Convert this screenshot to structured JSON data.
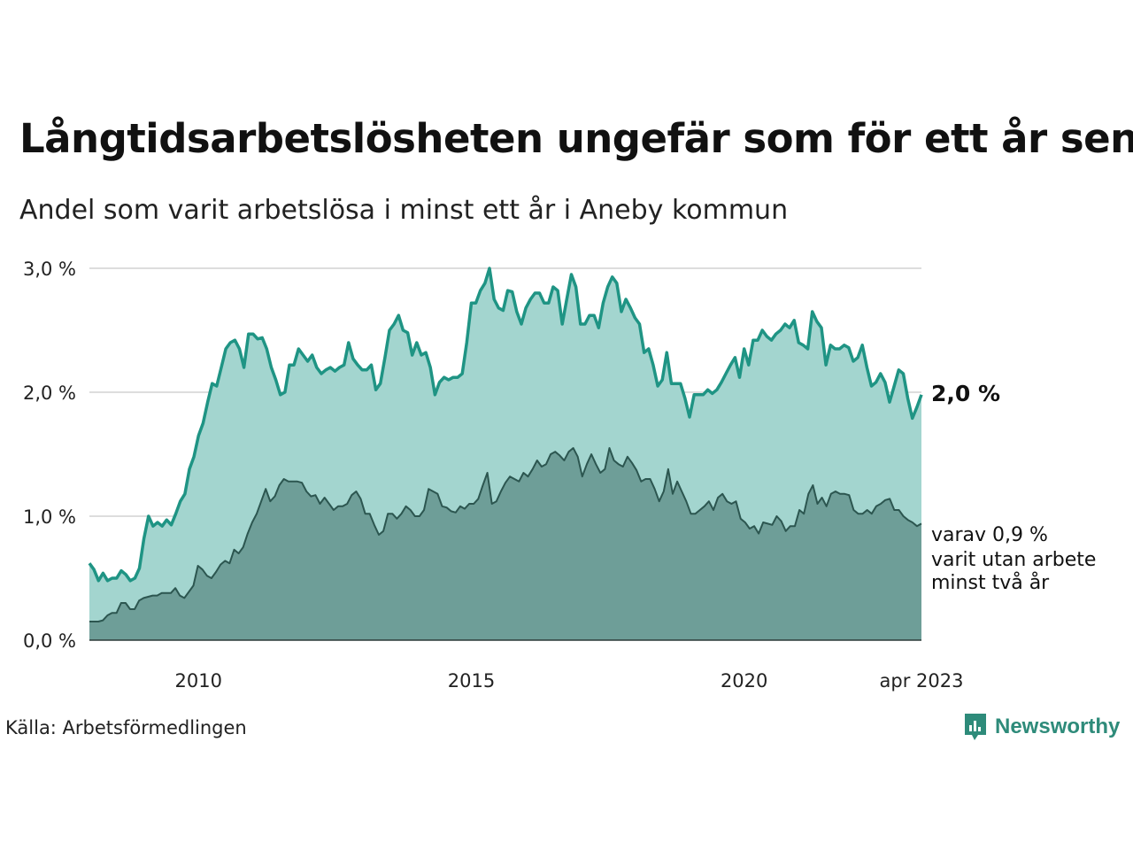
{
  "title": "Långtidsarbetslösheten ungefär som för ett år sen",
  "subtitle": "Andel som varit arbetslösa i minst ett år i Aneby kommun",
  "source": "Källa: Arbetsförmedlingen",
  "brand": "Newsworthy",
  "end_label": "2,0 %",
  "note_lines": [
    "varav 0,9 %",
    "varit utan arbete",
    "minst två år"
  ],
  "colors": {
    "long_area": "#a3d5cf",
    "long_line": "#1f9484",
    "verylong_area": "#6e9e98",
    "verylong_line": "#2c5650",
    "grid": "#dddddd",
    "brand": "#2e8b7a"
  },
  "chart_data": {
    "type": "area",
    "x_start": "2008-01",
    "x_end": "2023-04",
    "frequency": "monthly",
    "ylim": [
      0,
      3.0
    ],
    "y_ticks": [
      0,
      1.0,
      2.0,
      3.0
    ],
    "y_tick_labels": [
      "0,0 %",
      "1,0 %",
      "2,0 %",
      "3,0 %"
    ],
    "x_ticks": [
      "2010",
      "2015",
      "2020",
      "apr 2023"
    ],
    "x_tick_dates": [
      "2010-01",
      "2015-01",
      "2020-01",
      "2023-04"
    ],
    "grid": true,
    "series": [
      {
        "key": "long",
        "values": [
          0.62,
          0.57,
          0.48,
          0.54,
          0.48,
          0.5,
          0.5,
          0.56,
          0.53,
          0.48,
          0.5,
          0.58,
          0.82,
          1.0,
          0.92,
          0.95,
          0.92,
          0.97,
          0.93,
          1.02,
          1.12,
          1.18,
          1.38,
          1.48,
          1.65,
          1.75,
          1.92,
          2.07,
          2.05,
          2.2,
          2.35,
          2.4,
          2.42,
          2.35,
          2.2,
          2.47,
          2.47,
          2.43,
          2.44,
          2.35,
          2.2,
          2.1,
          1.98,
          2.0,
          2.22,
          2.22,
          2.35,
          2.3,
          2.25,
          2.3,
          2.2,
          2.15,
          2.18,
          2.2,
          2.17,
          2.2,
          2.22,
          2.4,
          2.27,
          2.22,
          2.18,
          2.18,
          2.22,
          2.02,
          2.07,
          2.28,
          2.5,
          2.55,
          2.62,
          2.5,
          2.48,
          2.3,
          2.4,
          2.3,
          2.32,
          2.2,
          1.98,
          2.08,
          2.12,
          2.1,
          2.12,
          2.12,
          2.15,
          2.4,
          2.72,
          2.72,
          2.82,
          2.88,
          3.0,
          2.75,
          2.68,
          2.66,
          2.82,
          2.81,
          2.65,
          2.55,
          2.68,
          2.75,
          2.8,
          2.8,
          2.72,
          2.72,
          2.85,
          2.82,
          2.55,
          2.75,
          2.95,
          2.85,
          2.55,
          2.55,
          2.62,
          2.62,
          2.52,
          2.72,
          2.85,
          2.93,
          2.88,
          2.65,
          2.75,
          2.68,
          2.6,
          2.55,
          2.32,
          2.35,
          2.22,
          2.05,
          2.1,
          2.32,
          2.07,
          2.07,
          2.07,
          1.95,
          1.8,
          1.98,
          1.98,
          1.98,
          2.02,
          1.99,
          2.02,
          2.08,
          2.15,
          2.22,
          2.28,
          2.12,
          2.35,
          2.22,
          2.42,
          2.42,
          2.5,
          2.45,
          2.42,
          2.47,
          2.5,
          2.55,
          2.52,
          2.58,
          2.4,
          2.38,
          2.35,
          2.65,
          2.57,
          2.52,
          2.22,
          2.38,
          2.35,
          2.35,
          2.38,
          2.36,
          2.25,
          2.28,
          2.38,
          2.2,
          2.05,
          2.08,
          2.15,
          2.08,
          1.92,
          2.05,
          2.18,
          2.15,
          1.95,
          1.79,
          1.88,
          1.98
        ]
      },
      {
        "key": "very_long",
        "values": [
          0.15,
          0.15,
          0.15,
          0.16,
          0.2,
          0.22,
          0.22,
          0.3,
          0.3,
          0.25,
          0.25,
          0.32,
          0.34,
          0.35,
          0.36,
          0.36,
          0.38,
          0.38,
          0.38,
          0.42,
          0.36,
          0.34,
          0.39,
          0.44,
          0.6,
          0.57,
          0.52,
          0.5,
          0.55,
          0.61,
          0.64,
          0.62,
          0.73,
          0.7,
          0.75,
          0.86,
          0.95,
          1.02,
          1.12,
          1.22,
          1.12,
          1.16,
          1.25,
          1.3,
          1.28,
          1.28,
          1.28,
          1.27,
          1.2,
          1.16,
          1.17,
          1.1,
          1.15,
          1.1,
          1.05,
          1.08,
          1.08,
          1.1,
          1.17,
          1.2,
          1.14,
          1.02,
          1.02,
          0.93,
          0.85,
          0.88,
          1.02,
          1.02,
          0.98,
          1.02,
          1.08,
          1.05,
          1.0,
          1.0,
          1.05,
          1.22,
          1.2,
          1.18,
          1.08,
          1.07,
          1.04,
          1.03,
          1.08,
          1.06,
          1.1,
          1.1,
          1.14,
          1.25,
          1.35,
          1.1,
          1.12,
          1.2,
          1.27,
          1.32,
          1.3,
          1.28,
          1.35,
          1.32,
          1.38,
          1.45,
          1.4,
          1.42,
          1.5,
          1.52,
          1.49,
          1.45,
          1.52,
          1.55,
          1.48,
          1.32,
          1.42,
          1.5,
          1.42,
          1.35,
          1.38,
          1.55,
          1.45,
          1.42,
          1.4,
          1.48,
          1.43,
          1.37,
          1.28,
          1.3,
          1.3,
          1.22,
          1.12,
          1.2,
          1.38,
          1.18,
          1.28,
          1.2,
          1.12,
          1.02,
          1.02,
          1.05,
          1.08,
          1.12,
          1.05,
          1.15,
          1.18,
          1.12,
          1.1,
          1.12,
          0.98,
          0.95,
          0.9,
          0.92,
          0.86,
          0.95,
          0.94,
          0.93,
          1.0,
          0.96,
          0.88,
          0.92,
          0.92,
          1.05,
          1.02,
          1.18,
          1.25,
          1.1,
          1.15,
          1.08,
          1.18,
          1.2,
          1.18,
          1.18,
          1.17,
          1.05,
          1.02,
          1.02,
          1.05,
          1.02,
          1.08,
          1.1,
          1.13,
          1.14,
          1.05,
          1.05,
          1.0,
          0.97,
          0.95,
          0.92,
          0.94
        ]
      }
    ]
  }
}
